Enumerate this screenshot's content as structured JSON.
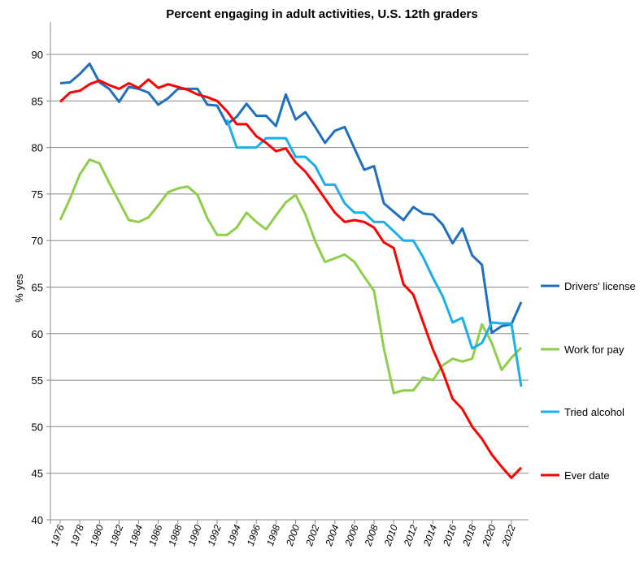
{
  "chart_data": {
    "type": "line",
    "title": "Percent engaging in adult activities, U.S. 12th graders",
    "xlabel": "",
    "ylabel": "% yes",
    "ylim": [
      40,
      90
    ],
    "yticks": [
      40,
      45,
      50,
      55,
      60,
      65,
      70,
      75,
      80,
      85,
      90
    ],
    "xlim": [
      1976,
      2023
    ],
    "xticks": [
      1976,
      1978,
      1980,
      1982,
      1984,
      1986,
      1988,
      1990,
      1992,
      1994,
      1996,
      1998,
      2000,
      2002,
      2004,
      2006,
      2008,
      2010,
      2012,
      2014,
      2016,
      2018,
      2020,
      2022
    ],
    "grid": true,
    "legend_position": "right",
    "x": [
      1976,
      1977,
      1978,
      1979,
      1980,
      1981,
      1982,
      1983,
      1984,
      1985,
      1986,
      1987,
      1988,
      1989,
      1990,
      1991,
      1992,
      1993,
      1994,
      1995,
      1996,
      1997,
      1998,
      1999,
      2000,
      2001,
      2002,
      2003,
      2004,
      2005,
      2006,
      2007,
      2008,
      2009,
      2010,
      2011,
      2012,
      2013,
      2014,
      2015,
      2016,
      2017,
      2018,
      2019,
      2020,
      2021,
      2022,
      2023
    ],
    "series": [
      {
        "name": "Drivers' license",
        "color": "#1F6FBF",
        "values": [
          86.9,
          87.0,
          87.9,
          89.0,
          87.0,
          86.3,
          84.9,
          86.5,
          86.3,
          85.9,
          84.6,
          85.3,
          86.3,
          86.3,
          86.3,
          84.6,
          84.5,
          82.5,
          83.3,
          84.7,
          83.4,
          83.4,
          82.3,
          85.7,
          83.0,
          83.8,
          82.2,
          80.5,
          81.8,
          82.2,
          79.9,
          77.6,
          78.0,
          74.0,
          73.1,
          72.2,
          73.6,
          72.9,
          72.8,
          71.7,
          69.7,
          71.3,
          68.4,
          67.4,
          60.1,
          60.8,
          61.0,
          63.4
        ]
      },
      {
        "name": "Work for pay",
        "color": "#8DCF4A",
        "values": [
          72.2,
          74.5,
          77.1,
          78.7,
          78.3,
          76.2,
          74.2,
          72.2,
          72.0,
          72.5,
          73.8,
          75.2,
          75.6,
          75.8,
          74.9,
          72.4,
          70.6,
          70.6,
          71.4,
          73.0,
          72.0,
          71.2,
          72.7,
          74.1,
          74.9,
          72.8,
          69.9,
          67.7,
          68.1,
          68.5,
          67.7,
          66.1,
          64.6,
          58.4,
          53.6,
          53.9,
          53.9,
          55.3,
          55.0,
          56.6,
          57.3,
          57.0,
          57.3,
          61.0,
          59.0,
          56.1,
          57.4,
          58.5
        ]
      },
      {
        "name": "Tried alcohol",
        "color": "#1AAEEB",
        "values": [
          null,
          null,
          null,
          null,
          null,
          null,
          null,
          null,
          null,
          null,
          null,
          null,
          null,
          null,
          null,
          null,
          null,
          83.0,
          80.0,
          80.0,
          80.0,
          81.0,
          81.0,
          81.0,
          79.0,
          79.0,
          78.0,
          76.0,
          76.0,
          74.0,
          73.0,
          73.0,
          72.0,
          72.0,
          71.0,
          70.0,
          70.0,
          68.2,
          66.0,
          64.0,
          61.2,
          61.7,
          58.4,
          59.0,
          61.2,
          61.1,
          61.1,
          54.3
        ]
      },
      {
        "name": "Ever date",
        "color": "#FF0000",
        "values": [
          84.9,
          85.9,
          86.1,
          86.8,
          87.2,
          86.7,
          86.3,
          86.9,
          86.4,
          87.3,
          86.4,
          86.8,
          86.5,
          86.2,
          85.7,
          85.4,
          85.0,
          83.9,
          82.5,
          82.5,
          81.2,
          80.5,
          79.6,
          79.9,
          78.4,
          77.4,
          76.0,
          74.5,
          73.0,
          72.0,
          72.2,
          72.0,
          71.4,
          69.8,
          69.2,
          65.3,
          64.2,
          61.2,
          58.3,
          55.9,
          53.0,
          51.9,
          50.0,
          48.7,
          47.0,
          45.7,
          44.5,
          45.6
        ]
      }
    ]
  }
}
